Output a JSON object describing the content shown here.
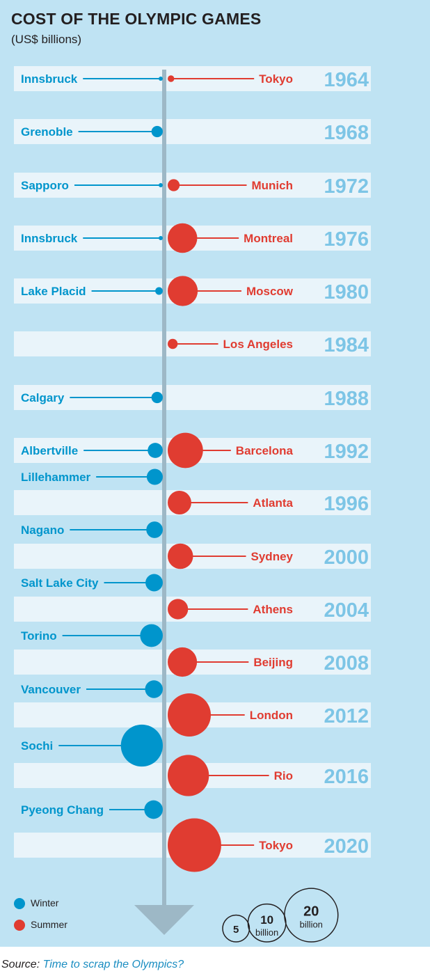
{
  "title": "COST OF THE OLYMPIC GAMES",
  "subtitle": "(US$ billions)",
  "colors": {
    "winter": "#0095cc",
    "summer": "#e03c31",
    "year": "#7dc5e6",
    "background": "#bfe3f3",
    "row": "#e9f4fa",
    "arrow": "#9db8c6"
  },
  "chart_data": {
    "type": "bubble-timeline",
    "unit": "US$ billions",
    "years": [
      "1964",
      "1968",
      "1972",
      "1976",
      "1980",
      "1984",
      "1988",
      "1992",
      "1996",
      "2000",
      "2004",
      "2008",
      "2012",
      "2016",
      "2020"
    ],
    "winter": [
      {
        "city": "Innsbruck",
        "year": "1964",
        "cost": 0.02
      },
      {
        "city": "Grenoble",
        "year": "1968",
        "cost": 0.9
      },
      {
        "city": "Sapporo",
        "year": "1972",
        "cost": 0.1
      },
      {
        "city": "Innsbruck",
        "year": "1976",
        "cost": 0.1
      },
      {
        "city": "Lake Placid",
        "year": "1980",
        "cost": 0.4
      },
      {
        "city": "Calgary",
        "year": "1988",
        "cost": 0.9
      },
      {
        "city": "Albertville",
        "year": "1992",
        "cost": 1.6
      },
      {
        "city": "Lillehammer",
        "year": "1994",
        "cost": 1.8
      },
      {
        "city": "Nagano",
        "year": "1998",
        "cost": 1.9
      },
      {
        "city": "Salt Lake City",
        "year": "2002",
        "cost": 2.1
      },
      {
        "city": "Torino",
        "year": "2006",
        "cost": 3.6
      },
      {
        "city": "Vancouver",
        "year": "2010",
        "cost": 2.2
      },
      {
        "city": "Sochi",
        "year": "2014",
        "cost": 12.3
      },
      {
        "city": "Pyeong Chang",
        "year": "2018",
        "cost": 2.4
      }
    ],
    "summer": [
      {
        "city": "Tokyo",
        "year": "1964",
        "cost": 0.3
      },
      {
        "city": "Munich",
        "year": "1972",
        "cost": 1.0
      },
      {
        "city": "Montreal",
        "year": "1976",
        "cost": 6.1
      },
      {
        "city": "Moscow",
        "year": "1980",
        "cost": 6.3
      },
      {
        "city": "Los Angeles",
        "year": "1984",
        "cost": 0.7
      },
      {
        "city": "Barcelona",
        "year": "1992",
        "cost": 8.7
      },
      {
        "city": "Atlanta",
        "year": "1996",
        "cost": 3.9
      },
      {
        "city": "Sydney",
        "year": "2000",
        "cost": 4.5
      },
      {
        "city": "Athens",
        "year": "2004",
        "cost": 2.9
      },
      {
        "city": "Beijing",
        "year": "2008",
        "cost": 6.0
      },
      {
        "city": "London",
        "year": "2012",
        "cost": 13.0
      },
      {
        "city": "Rio",
        "year": "2016",
        "cost": 11.9
      },
      {
        "city": "Tokyo",
        "year": "2020",
        "cost": 20.0
      }
    ],
    "size_key": [
      {
        "value": 5,
        "label": "5",
        "sublabel": ""
      },
      {
        "value": 10,
        "label": "10",
        "sublabel": "billion"
      },
      {
        "value": 20,
        "label": "20",
        "sublabel": "billion"
      }
    ]
  },
  "legend": {
    "winter_label": "Winter",
    "summer_label": "Summer"
  },
  "source": {
    "prefix": "Source:",
    "text": "Time to scrap the Olympics?"
  }
}
